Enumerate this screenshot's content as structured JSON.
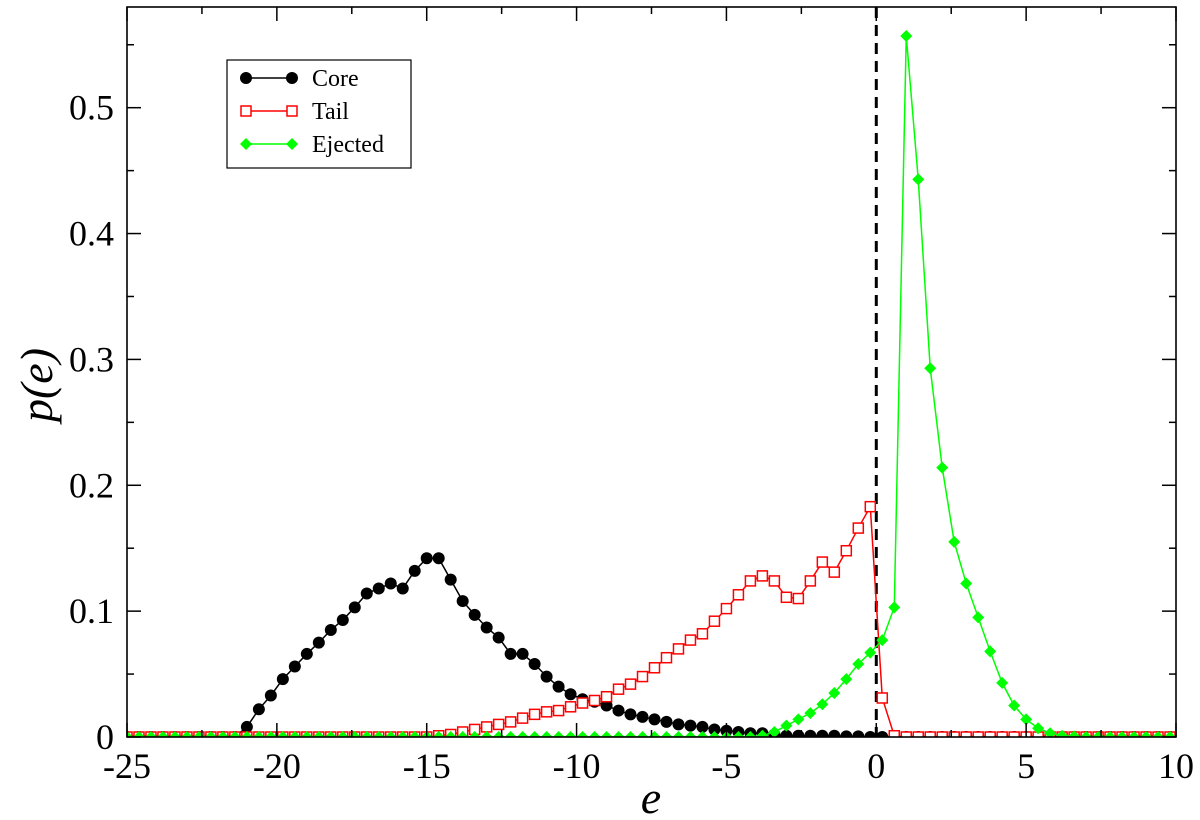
{
  "chart_data": {
    "type": "line",
    "title": "",
    "xlabel": "e",
    "ylabel": "p(e)",
    "xlim": [
      -25,
      10
    ],
    "ylim": [
      0,
      0.58
    ],
    "xticks": [
      -25,
      -20,
      -15,
      -10,
      -5,
      0,
      5,
      10
    ],
    "xtick_labels": [
      "-25",
      "-20",
      "-15",
      "-10",
      "-5",
      "0",
      "5",
      "10"
    ],
    "yticks": [
      0,
      0.1,
      0.2,
      0.3,
      0.4,
      0.5
    ],
    "ytick_labels": [
      "0",
      "0.1",
      "0.2",
      "0.3",
      "0.4",
      "0.5"
    ],
    "grid": false,
    "legend_position": "top-left",
    "reference_line": {
      "x": 0,
      "style": "dashed",
      "color": "#000000"
    },
    "series": [
      {
        "name": "Core",
        "color": "#000000",
        "marker": "filled-circle",
        "x": [
          -25.0,
          -24.6,
          -24.2,
          -23.8,
          -23.4,
          -23.0,
          -22.6,
          -22.2,
          -21.8,
          -21.4,
          -21.0,
          -20.6,
          -20.2,
          -19.8,
          -19.4,
          -19.0,
          -18.6,
          -18.2,
          -17.8,
          -17.4,
          -17.0,
          -16.6,
          -16.2,
          -15.8,
          -15.4,
          -15.0,
          -14.6,
          -14.2,
          -13.8,
          -13.4,
          -13.0,
          -12.6,
          -12.2,
          -11.8,
          -11.4,
          -11.0,
          -10.6,
          -10.2,
          -9.8,
          -9.4,
          -9.0,
          -8.6,
          -8.2,
          -7.8,
          -7.4,
          -7.0,
          -6.6,
          -6.2,
          -5.8,
          -5.4,
          -5.0,
          -4.6,
          -4.2,
          -3.8,
          -3.4,
          -3.0,
          -2.6,
          -2.2,
          -1.8,
          -1.4,
          -1.0,
          -0.6,
          -0.2,
          0.2,
          0.6,
          1.0,
          1.4,
          1.8,
          2.2,
          2.6,
          3.0,
          3.4,
          3.8,
          4.2,
          4.6,
          5.0,
          5.4,
          5.8,
          6.2,
          6.6,
          7.0,
          7.4,
          7.8,
          8.2,
          8.6,
          9.0,
          9.4,
          9.8
        ],
        "values": [
          0,
          0,
          0,
          0,
          0,
          0,
          0,
          0,
          0,
          0,
          0.008,
          0.022,
          0.033,
          0.046,
          0.056,
          0.066,
          0.075,
          0.085,
          0.093,
          0.103,
          0.114,
          0.118,
          0.122,
          0.118,
          0.132,
          0.142,
          0.142,
          0.125,
          0.108,
          0.097,
          0.087,
          0.079,
          0.066,
          0.066,
          0.058,
          0.048,
          0.04,
          0.034,
          0.03,
          0.028,
          0.025,
          0.021,
          0.018,
          0.016,
          0.014,
          0.012,
          0.01,
          0.009,
          0.008,
          0.006,
          0.005,
          0.004,
          0.003,
          0.003,
          0.002,
          0.001,
          0.001,
          0.001,
          0.001,
          0.001,
          0.0005,
          0.0005,
          0,
          0,
          0,
          0,
          0,
          0,
          0,
          0,
          0,
          0,
          0,
          0,
          0,
          0,
          0,
          0,
          0,
          0,
          0,
          0,
          0,
          0,
          0,
          0,
          0,
          0
        ]
      },
      {
        "name": "Tail",
        "color": "#ff0000",
        "marker": "open-square",
        "x": [
          -25.0,
          -24.6,
          -24.2,
          -23.8,
          -23.4,
          -23.0,
          -22.6,
          -22.2,
          -21.8,
          -21.4,
          -21.0,
          -20.6,
          -20.2,
          -19.8,
          -19.4,
          -19.0,
          -18.6,
          -18.2,
          -17.8,
          -17.4,
          -17.0,
          -16.6,
          -16.2,
          -15.8,
          -15.4,
          -15.0,
          -14.6,
          -14.2,
          -13.8,
          -13.4,
          -13.0,
          -12.6,
          -12.2,
          -11.8,
          -11.4,
          -11.0,
          -10.6,
          -10.2,
          -9.8,
          -9.4,
          -9.0,
          -8.6,
          -8.2,
          -7.8,
          -7.4,
          -7.0,
          -6.6,
          -6.2,
          -5.8,
          -5.4,
          -5.0,
          -4.6,
          -4.2,
          -3.8,
          -3.4,
          -3.0,
          -2.6,
          -2.2,
          -1.8,
          -1.4,
          -1.0,
          -0.6,
          -0.2,
          0.2,
          0.6,
          1.0,
          1.4,
          1.8,
          2.2,
          2.6,
          3.0,
          3.4,
          3.8,
          4.2,
          4.6,
          5.0,
          5.4,
          5.8,
          6.2,
          6.6,
          7.0,
          7.4,
          7.8,
          8.2,
          8.6,
          9.0,
          9.4,
          9.8
        ],
        "values": [
          0,
          0,
          0,
          0,
          0,
          0,
          0,
          0,
          0,
          0,
          0,
          0,
          0,
          0,
          0,
          0,
          0,
          0,
          0,
          0,
          0,
          0,
          0,
          0,
          0,
          0,
          0.001,
          0.002,
          0.004,
          0.006,
          0.008,
          0.01,
          0.012,
          0.015,
          0.018,
          0.02,
          0.021,
          0.024,
          0.027,
          0.029,
          0.032,
          0.038,
          0.042,
          0.048,
          0.055,
          0.063,
          0.07,
          0.077,
          0.082,
          0.092,
          0.102,
          0.113,
          0.124,
          0.128,
          0.124,
          0.111,
          0.11,
          0.124,
          0.139,
          0.131,
          0.148,
          0.166,
          0.183,
          0.031,
          0.001,
          0,
          0,
          0,
          0,
          0,
          0,
          0,
          0,
          0,
          0,
          0,
          0,
          0,
          0,
          0,
          0,
          0,
          0,
          0,
          0,
          0,
          0,
          0
        ]
      },
      {
        "name": "Ejected",
        "color": "#00ff00",
        "marker": "filled-diamond",
        "x": [
          -25.0,
          -24.6,
          -24.2,
          -23.8,
          -23.4,
          -23.0,
          -22.6,
          -22.2,
          -21.8,
          -21.4,
          -21.0,
          -20.6,
          -20.2,
          -19.8,
          -19.4,
          -19.0,
          -18.6,
          -18.2,
          -17.8,
          -17.4,
          -17.0,
          -16.6,
          -16.2,
          -15.8,
          -15.4,
          -15.0,
          -14.6,
          -14.2,
          -13.8,
          -13.4,
          -13.0,
          -12.6,
          -12.2,
          -11.8,
          -11.4,
          -11.0,
          -10.6,
          -10.2,
          -9.8,
          -9.4,
          -9.0,
          -8.6,
          -8.2,
          -7.8,
          -7.4,
          -7.0,
          -6.6,
          -6.2,
          -5.8,
          -5.4,
          -5.0,
          -4.6,
          -4.2,
          -3.8,
          -3.4,
          -3.0,
          -2.6,
          -2.2,
          -1.8,
          -1.4,
          -1.0,
          -0.6,
          -0.2,
          0.2,
          0.6,
          1.0,
          1.4,
          1.8,
          2.2,
          2.6,
          3.0,
          3.4,
          3.8,
          4.2,
          4.6,
          5.0,
          5.4,
          5.8,
          6.2,
          6.6,
          7.0,
          7.4,
          7.8,
          8.2,
          8.6,
          9.0,
          9.4,
          9.8
        ],
        "values": [
          0,
          0,
          0,
          0,
          0,
          0,
          0,
          0,
          0,
          0,
          0,
          0,
          0,
          0,
          0,
          0,
          0,
          0,
          0,
          0,
          0,
          0,
          0,
          0,
          0,
          0,
          0,
          0,
          0,
          0,
          0,
          0,
          0,
          0,
          0,
          0,
          0,
          0,
          0,
          0,
          0,
          0,
          0,
          0,
          0,
          0,
          0,
          0,
          0,
          0,
          0,
          0,
          0,
          0.001,
          0.004,
          0.009,
          0.014,
          0.019,
          0.026,
          0.035,
          0.046,
          0.058,
          0.067,
          0.077,
          0.103,
          0.557,
          0.443,
          0.293,
          0.214,
          0.155,
          0.122,
          0.095,
          0.068,
          0.043,
          0.025,
          0.014,
          0.007,
          0.003,
          0.001,
          0.0005,
          0,
          0,
          0,
          0,
          0,
          0,
          0,
          0
        ]
      }
    ]
  }
}
